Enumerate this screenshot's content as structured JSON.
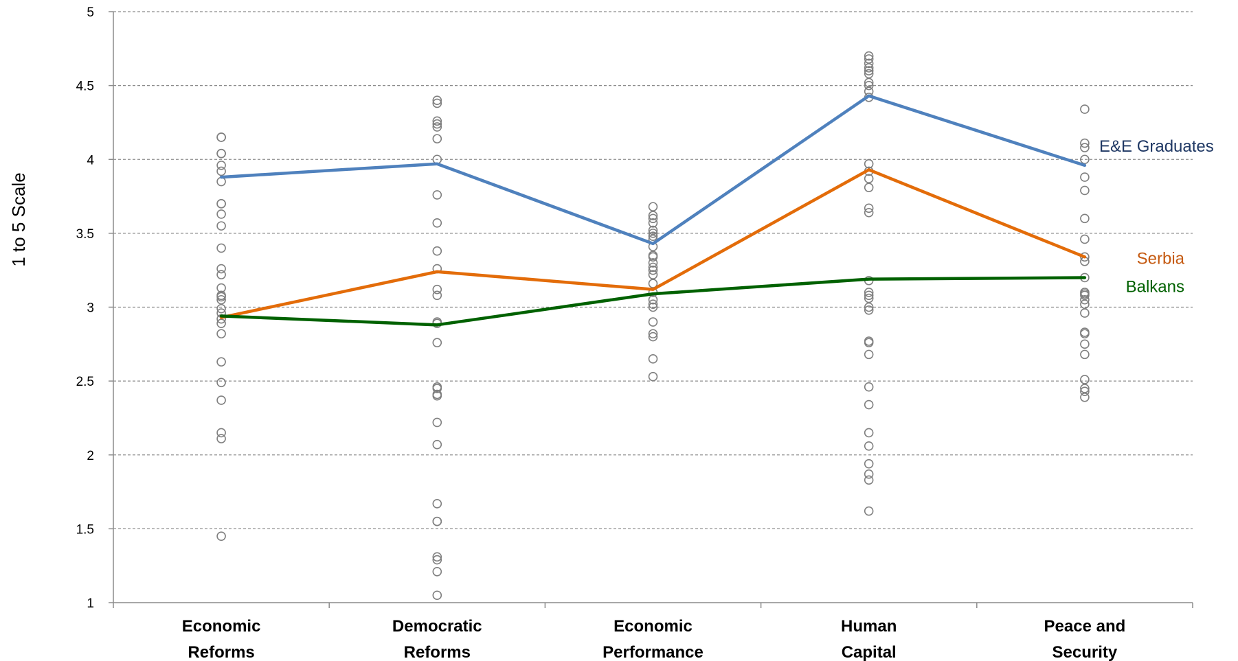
{
  "chart_data": {
    "type": "line",
    "ylabel": "1 to 5 Scale",
    "ylim": [
      1,
      5
    ],
    "yticks": [
      1,
      1.5,
      2,
      2.5,
      3,
      3.5,
      4,
      4.5,
      5
    ],
    "grid": true,
    "categories": [
      [
        "Economic",
        "Reforms"
      ],
      [
        "Democratic",
        "Reforms"
      ],
      [
        "Economic",
        "Performance"
      ],
      [
        "Human",
        "Capital"
      ],
      [
        "Peace and",
        "Security"
      ]
    ],
    "series": [
      {
        "name": "E&E Graduates",
        "values": [
          3.88,
          3.97,
          3.43,
          4.43,
          3.96
        ],
        "color": "#4F81BD"
      },
      {
        "name": "Serbia",
        "values": [
          2.93,
          3.24,
          3.12,
          3.93,
          3.34
        ],
        "color": "#E36C09"
      },
      {
        "name": "Balkans",
        "values": [
          2.94,
          2.88,
          3.09,
          3.19,
          3.2
        ],
        "color": "#006100"
      }
    ],
    "scatter_color": "#808080",
    "scatter_points": [
      [
        4.15,
        4.15,
        4.04,
        4.04,
        3.96,
        3.92,
        3.85,
        3.7,
        3.7,
        3.63,
        3.55,
        3.4,
        3.26,
        3.22,
        3.13,
        3.08,
        3.07,
        3.05,
        2.99,
        2.96,
        2.92,
        2.89,
        2.82,
        2.63,
        2.49,
        2.37,
        2.15,
        2.11,
        1.45
      ],
      [
        4.4,
        4.38,
        4.26,
        4.24,
        4.22,
        4.14,
        4.0,
        3.76,
        3.57,
        3.38,
        3.26,
        3.12,
        3.08,
        2.9,
        2.89,
        2.76,
        2.46,
        2.45,
        2.41,
        2.4,
        2.22,
        2.07,
        1.67,
        1.55,
        1.55,
        1.31,
        1.29,
        1.21,
        1.05
      ],
      [
        3.68,
        3.62,
        3.6,
        3.57,
        3.52,
        3.5,
        3.48,
        3.46,
        3.41,
        3.35,
        3.34,
        3.3,
        3.27,
        3.25,
        3.22,
        3.16,
        3.1,
        3.05,
        3.02,
        3.0,
        2.9,
        2.82,
        2.8,
        2.65,
        2.53
      ],
      [
        4.7,
        4.68,
        4.65,
        4.62,
        4.6,
        4.58,
        4.52,
        4.5,
        4.46,
        4.42,
        3.97,
        3.92,
        3.87,
        3.81,
        3.67,
        3.64,
        3.18,
        3.1,
        3.08,
        3.06,
        3.0,
        2.98,
        2.77,
        2.76,
        2.68,
        2.46,
        2.34,
        2.15,
        2.06,
        1.94,
        1.87,
        1.83,
        1.62
      ],
      [
        4.34,
        4.11,
        4.08,
        4.0,
        3.88,
        3.79,
        3.6,
        3.46,
        3.34,
        3.31,
        3.2,
        3.1,
        3.09,
        3.08,
        3.05,
        3.02,
        2.96,
        2.83,
        2.82,
        2.75,
        2.68,
        2.51,
        2.45,
        2.43,
        2.39
      ]
    ]
  }
}
